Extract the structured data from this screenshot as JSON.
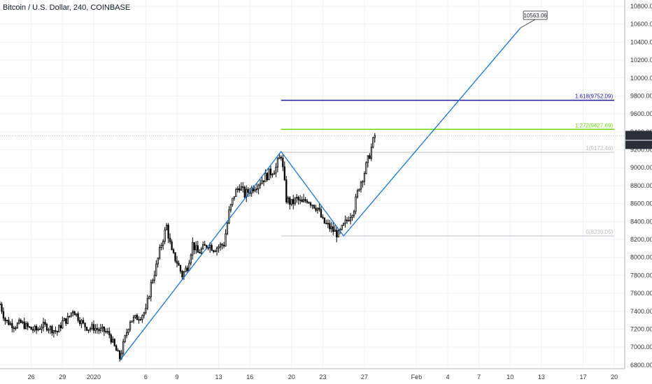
{
  "header": {
    "title": "Bitcoin / U.S. Dollar, 240, COINBASE"
  },
  "chart_data": {
    "type": "candlestick",
    "y_ticks": [
      6800,
      7000,
      7200,
      7400,
      7600,
      7800,
      8000,
      8200,
      8400,
      8600,
      8800,
      9000,
      9200,
      9400,
      9600,
      9800,
      10000,
      10200,
      10400,
      10600,
      10800
    ],
    "y_tick_labels": [
      "6800.00",
      "7000.00",
      "7200.00",
      "7400.00",
      "7600.00",
      "7800.00",
      "8000.00",
      "8200.00",
      "8400.00",
      "8600.00",
      "8800.00",
      "9000.00",
      "9200.00",
      "9400.00",
      "9600.00",
      "9800.00",
      "10000.00",
      "10200.00",
      "10400.00",
      "10600.00",
      "10800.00"
    ],
    "x_ticks": [
      {
        "label": "26",
        "day": -6
      },
      {
        "label": "29",
        "day": -3
      },
      {
        "label": "2020",
        "day": 0
      },
      {
        "label": "6",
        "day": 5
      },
      {
        "label": "9",
        "day": 8
      },
      {
        "label": "13",
        "day": 12
      },
      {
        "label": "16",
        "day": 15
      },
      {
        "label": "20",
        "day": 19
      },
      {
        "label": "23",
        "day": 22
      },
      {
        "label": "27",
        "day": 26
      },
      {
        "label": "Feb",
        "day": 31
      },
      {
        "label": "4",
        "day": 34
      },
      {
        "label": "7",
        "day": 37
      },
      {
        "label": "10",
        "day": 40
      },
      {
        "label": "13",
        "day": 43
      },
      {
        "label": "17",
        "day": 47
      },
      {
        "label": "20",
        "day": 50
      }
    ],
    "close_series": [
      [
        -9.0,
        7480
      ],
      [
        -8.5,
        7300
      ],
      [
        -8.0,
        7260
      ],
      [
        -7.5,
        7240
      ],
      [
        -7.0,
        7270
      ],
      [
        -6.5,
        7230
      ],
      [
        -6.0,
        7200
      ],
      [
        -5.5,
        7190
      ],
      [
        -5.0,
        7240
      ],
      [
        -4.5,
        7230
      ],
      [
        -4.0,
        7200
      ],
      [
        -3.5,
        7170
      ],
      [
        -3.0,
        7280
      ],
      [
        -2.5,
        7310
      ],
      [
        -2.0,
        7420
      ],
      [
        -1.5,
        7330
      ],
      [
        -1.0,
        7250
      ],
      [
        -0.5,
        7210
      ],
      [
        0.0,
        7220
      ],
      [
        0.5,
        7190
      ],
      [
        1.0,
        7180
      ],
      [
        1.5,
        7140
      ],
      [
        2.0,
        7000
      ],
      [
        2.5,
        6880
      ],
      [
        3.0,
        7100
      ],
      [
        3.5,
        7300
      ],
      [
        4.0,
        7320
      ],
      [
        4.5,
        7350
      ],
      [
        5.0,
        7400
      ],
      [
        5.5,
        7700
      ],
      [
        6.0,
        7900
      ],
      [
        6.5,
        8150
      ],
      [
        7.0,
        8350
      ],
      [
        7.5,
        8050
      ],
      [
        8.0,
        7950
      ],
      [
        8.5,
        7800
      ],
      [
        9.0,
        7900
      ],
      [
        9.5,
        8150
      ],
      [
        10.0,
        8050
      ],
      [
        10.5,
        8100
      ],
      [
        11.0,
        8150
      ],
      [
        11.5,
        8100
      ],
      [
        12.0,
        8120
      ],
      [
        12.5,
        8150
      ],
      [
        13.0,
        8500
      ],
      [
        13.5,
        8700
      ],
      [
        14.0,
        8800
      ],
      [
        14.5,
        8700
      ],
      [
        15.0,
        8750
      ],
      [
        15.5,
        8800
      ],
      [
        16.0,
        8850
      ],
      [
        16.5,
        8900
      ],
      [
        17.0,
        8950
      ],
      [
        17.5,
        9000
      ],
      [
        18.0,
        9150
      ],
      [
        18.5,
        8650
      ],
      [
        19.0,
        8600
      ],
      [
        19.5,
        8650
      ],
      [
        20.0,
        8600
      ],
      [
        20.5,
        8650
      ],
      [
        21.0,
        8600
      ],
      [
        21.5,
        8550
      ],
      [
        22.0,
        8400
      ],
      [
        22.5,
        8350
      ],
      [
        23.0,
        8300
      ],
      [
        23.5,
        8250
      ],
      [
        24.0,
        8350
      ],
      [
        24.5,
        8450
      ],
      [
        25.0,
        8550
      ],
      [
        25.5,
        8800
      ],
      [
        26.0,
        8950
      ],
      [
        26.5,
        9150
      ],
      [
        27.0,
        9357
      ]
    ],
    "candle_range_pct": 1.2,
    "fib_levels": [
      {
        "name": "1.618(9752.09)",
        "value": 9752.09,
        "color": "#1a1a9c"
      },
      {
        "name": "1.272(9427.69)",
        "value": 9427.69,
        "color": "#6ad80a"
      },
      {
        "name": "1(9172.46)",
        "value": 9172.46,
        "color": "#bdbdbd"
      },
      {
        "name": "0(8239.05)",
        "value": 8239.05,
        "color": "#bdbdbd"
      }
    ],
    "fib_start_day": 18.0,
    "fib_end_day": 50.0,
    "zigzag": [
      [
        2.5,
        6850
      ],
      [
        18.0,
        9180
      ],
      [
        24.0,
        8240
      ],
      [
        41.0,
        10560
      ]
    ],
    "zigzag_color": "#1976d2",
    "target_label": "10563.06",
    "current_price": "9356.55",
    "countdown": "02:54:46",
    "price_tag_color": "#2a2e39",
    "x_range": [
      -9.0,
      51.0
    ],
    "y_range": [
      6760,
      10870
    ]
  }
}
